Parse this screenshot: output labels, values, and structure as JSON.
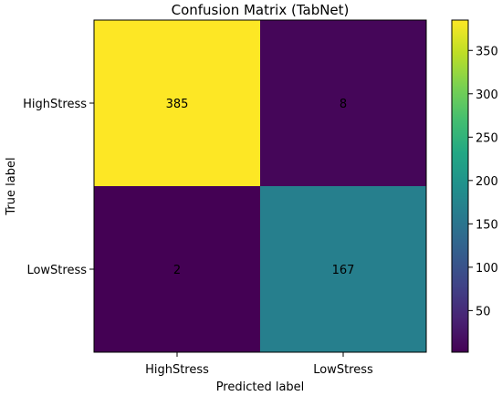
{
  "chart_data": {
    "type": "heatmap",
    "title": "Confusion Matrix (TabNet)",
    "xlabel": "Predicted label",
    "ylabel": "True label",
    "x_categories": [
      "HighStress",
      "LowStress"
    ],
    "y_categories": [
      "HighStress",
      "LowStress"
    ],
    "values": [
      [
        385,
        8
      ],
      [
        2,
        167
      ]
    ],
    "colormap": "viridis",
    "colorbar": {
      "range": [
        2,
        385
      ],
      "ticks": [
        50,
        100,
        150,
        200,
        250,
        300,
        350
      ]
    },
    "grid": false
  }
}
